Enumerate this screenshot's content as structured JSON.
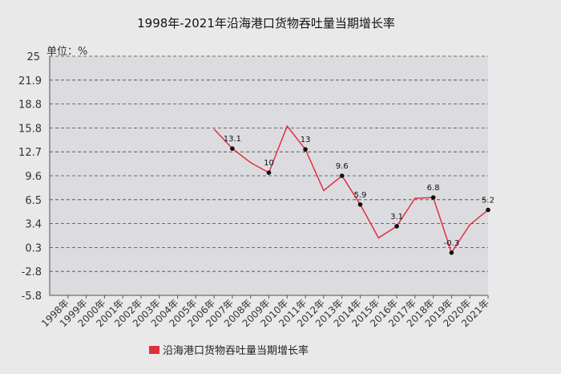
{
  "chart_data": {
    "type": "line",
    "title": "1998年-2021年沿海港口货物吞吐量当期增长率",
    "unit_label": "单位：%",
    "categories": [
      "1998年",
      "1999年",
      "2000年",
      "2001年",
      "2002年",
      "2003年",
      "2004年",
      "2005年",
      "2006年",
      "2007年",
      "2008年",
      "2009年",
      "2010年",
      "2011年",
      "2012年",
      "2013年",
      "2014年",
      "2015年",
      "2016年",
      "2017年",
      "2018年",
      "2019年",
      "2020年",
      "2021年"
    ],
    "series": [
      {
        "name": "沿海港口货物吞吐量当期增长率",
        "color": "#e0303f",
        "values": [
          null,
          null,
          null,
          null,
          null,
          null,
          null,
          null,
          15.6,
          13.1,
          11.3,
          10.0,
          16.0,
          13.0,
          7.7,
          9.6,
          5.9,
          1.6,
          3.1,
          6.7,
          6.8,
          -0.3,
          3.3,
          5.2
        ],
        "labels": {
          "9": "13.1",
          "11": "10",
          "13": "13",
          "15": "9.6",
          "16": "5.9",
          "18": "3.1",
          "20": "6.8",
          "21": "-0.3",
          "23": "5.2"
        }
      }
    ],
    "yticks": [
      "25",
      "21.9",
      "18.8",
      "15.8",
      "12.7",
      "9.6",
      "6.5",
      "3.4",
      "0.3",
      "-2.8",
      "-5.8"
    ],
    "ylim": [
      -5.8,
      25
    ],
    "grid": true,
    "legend_position": "bottom"
  }
}
